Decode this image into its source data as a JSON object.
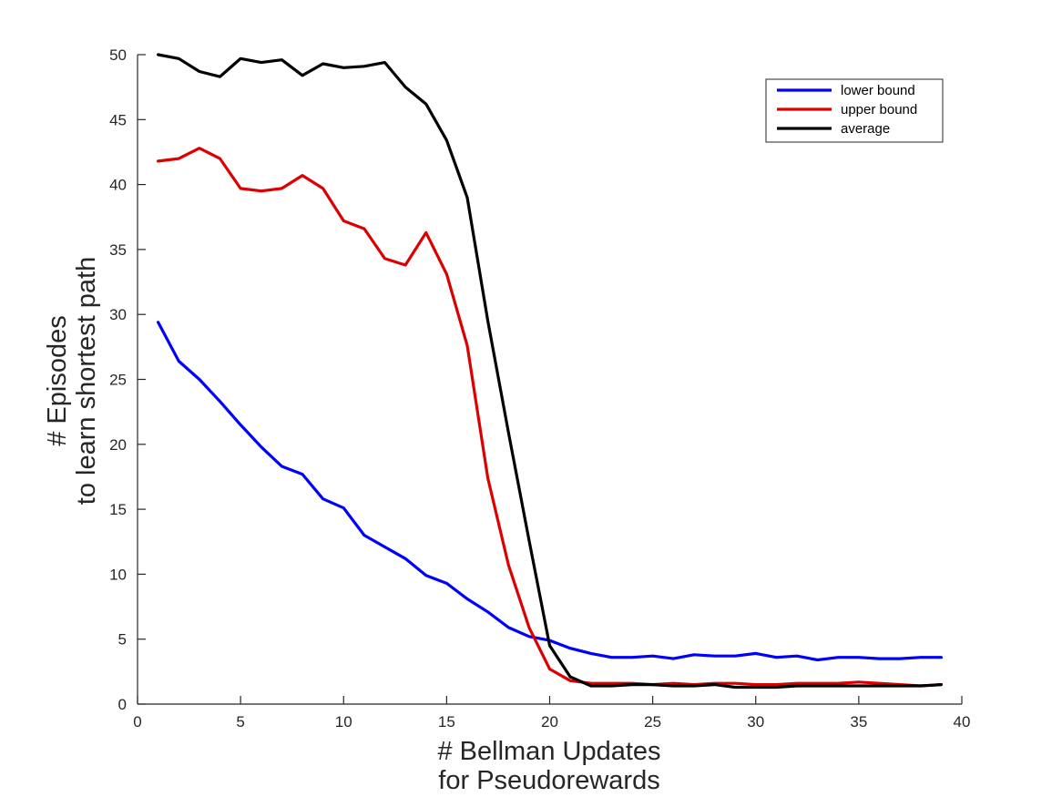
{
  "chart_data": {
    "type": "line",
    "title": "",
    "xlabel": [
      "# Bellman Updates",
      "for Pseudorewards"
    ],
    "ylabel": [
      "# Episodes",
      "to learn shortest path"
    ],
    "xlim": [
      0,
      40
    ],
    "ylim": [
      0,
      50
    ],
    "xticks": [
      0,
      5,
      10,
      15,
      20,
      25,
      30,
      35,
      40
    ],
    "yticks": [
      0,
      5,
      10,
      15,
      20,
      25,
      30,
      35,
      40,
      45,
      50
    ],
    "grid": false,
    "legend_position": "top-right",
    "x": [
      1,
      2,
      3,
      4,
      5,
      6,
      7,
      8,
      9,
      10,
      11,
      12,
      13,
      14,
      15,
      16,
      17,
      18,
      19,
      20,
      21,
      22,
      23,
      24,
      25,
      26,
      27,
      28,
      29,
      30,
      31,
      32,
      33,
      34,
      35,
      36,
      37,
      38,
      39
    ],
    "series": [
      {
        "name": "lower bound",
        "color": "#0000ff",
        "values": [
          29.4,
          26.4,
          25.0,
          23.3,
          21.5,
          19.8,
          18.3,
          17.7,
          15.8,
          15.1,
          13.0,
          12.1,
          11.2,
          9.9,
          9.3,
          8.1,
          7.1,
          5.9,
          5.2,
          4.9,
          4.3,
          3.9,
          3.6,
          3.6,
          3.7,
          3.5,
          3.8,
          3.7,
          3.7,
          3.9,
          3.6,
          3.7,
          3.4,
          3.6,
          3.6,
          3.5,
          3.5,
          3.6,
          3.6
        ]
      },
      {
        "name": "upper bound",
        "color": "#dd0000",
        "values": [
          41.8,
          42.0,
          42.8,
          42.0,
          39.7,
          39.5,
          39.7,
          40.7,
          39.7,
          37.2,
          36.6,
          34.3,
          33.8,
          36.3,
          33.1,
          27.6,
          17.4,
          10.7,
          5.9,
          2.7,
          1.8,
          1.6,
          1.6,
          1.6,
          1.5,
          1.6,
          1.5,
          1.6,
          1.6,
          1.5,
          1.5,
          1.6,
          1.6,
          1.6,
          1.7,
          1.6,
          1.5,
          1.4,
          1.5
        ]
      },
      {
        "name": "average",
        "color": "#000000",
        "values": [
          50.0,
          49.7,
          48.7,
          48.3,
          49.7,
          49.4,
          49.6,
          48.4,
          49.3,
          49.0,
          49.1,
          49.4,
          47.5,
          46.2,
          43.4,
          39.0,
          29.5,
          20.9,
          12.6,
          4.5,
          2.1,
          1.4,
          1.4,
          1.5,
          1.5,
          1.4,
          1.4,
          1.5,
          1.3,
          1.3,
          1.3,
          1.4,
          1.4,
          1.4,
          1.4,
          1.4,
          1.4,
          1.4,
          1.5
        ]
      }
    ]
  }
}
